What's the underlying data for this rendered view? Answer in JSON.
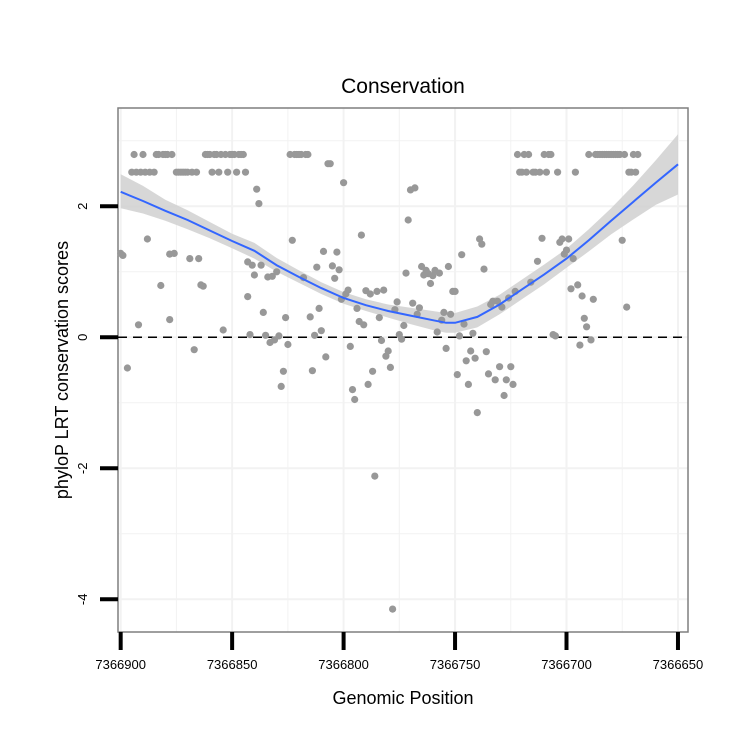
{
  "chart_data": {
    "type": "scatter",
    "title": "Conservation",
    "xlabel": "Genomic Position",
    "ylabel": "phyloP LRT conservation scores",
    "x_reversed": true,
    "xlim": [
      7366901.2,
      7366645.5
    ],
    "ylim": [
      -4.5,
      3.5
    ],
    "x_ticks": [
      7366900,
      7366850,
      7366800,
      7366750,
      7366700,
      7366650
    ],
    "x_tick_labels": [
      "7366900",
      "7366850",
      "7366800",
      "7366750",
      "7366700",
      "7366650"
    ],
    "y_ticks": [
      2,
      0,
      -2,
      -4
    ],
    "y_tick_labels": [
      "2",
      "0",
      "-2",
      "-4"
    ],
    "reference_line": {
      "y": 0,
      "style": "dashed"
    },
    "colors": {
      "points": "#989898",
      "smooth_line": "#3366ff",
      "confidence_band": "#d0d0d0",
      "grid": "#f2f2f2",
      "frame": "#7f7f7f",
      "reference_line": "#000000"
    },
    "series": [
      {
        "name": "phyloP LRT score",
        "points": [
          [
            7366900,
            1.28
          ],
          [
            7366899,
            1.25
          ],
          [
            7366897,
            -0.47
          ],
          [
            7366895,
            2.52
          ],
          [
            7366894,
            2.79
          ],
          [
            7366893,
            2.52
          ],
          [
            7366892,
            0.19
          ],
          [
            7366891,
            2.52
          ],
          [
            7366890,
            2.79
          ],
          [
            7366889,
            2.52
          ],
          [
            7366888,
            1.5
          ],
          [
            7366887,
            2.52
          ],
          [
            7366885,
            2.52
          ],
          [
            7366884,
            2.79
          ],
          [
            7366883,
            2.79
          ],
          [
            7366882,
            0.79
          ],
          [
            7366881,
            2.79
          ],
          [
            7366880,
            2.79
          ],
          [
            7366879,
            2.79
          ],
          [
            7366878,
            0.27
          ],
          [
            7366878,
            1.27
          ],
          [
            7366877,
            2.79
          ],
          [
            7366876,
            1.28
          ],
          [
            7366875,
            2.52
          ],
          [
            7366874,
            2.52
          ],
          [
            7366873,
            2.52
          ],
          [
            7366872,
            2.52
          ],
          [
            7366871,
            2.52
          ],
          [
            7366870,
            2.52
          ],
          [
            7366869,
            1.2
          ],
          [
            7366868,
            2.52
          ],
          [
            7366867,
            -0.19
          ],
          [
            7366866,
            2.52
          ],
          [
            7366865,
            1.2
          ],
          [
            7366864,
            0.8
          ],
          [
            7366863,
            0.78
          ],
          [
            7366862,
            2.79
          ],
          [
            7366861,
            2.79
          ],
          [
            7366860,
            2.79
          ],
          [
            7366859,
            2.52
          ],
          [
            7366858,
            2.79
          ],
          [
            7366857,
            2.79
          ],
          [
            7366856,
            2.52
          ],
          [
            7366855,
            2.79
          ],
          [
            7366854,
            0.11
          ],
          [
            7366853,
            2.79
          ],
          [
            7366852,
            2.52
          ],
          [
            7366851,
            2.79
          ],
          [
            7366850,
            2.79
          ],
          [
            7366849,
            2.79
          ],
          [
            7366848,
            2.52
          ],
          [
            7366847,
            2.79
          ],
          [
            7366846,
            2.79
          ],
          [
            7366845,
            2.79
          ],
          [
            7366844,
            2.52
          ],
          [
            7366843,
            1.15
          ],
          [
            7366843,
            0.62
          ],
          [
            7366842,
            0.04
          ],
          [
            7366841,
            1.1
          ],
          [
            7366840,
            0.95
          ],
          [
            7366839,
            2.26
          ],
          [
            7366838,
            2.04
          ],
          [
            7366837,
            1.1
          ],
          [
            7366836,
            0.38
          ],
          [
            7366835,
            0.03
          ],
          [
            7366834,
            0.92
          ],
          [
            7366833,
            -0.08
          ],
          [
            7366832,
            0.93
          ],
          [
            7366831,
            -0.04
          ],
          [
            7366830,
            1.0
          ],
          [
            7366829,
            0.02
          ],
          [
            7366828,
            -0.75
          ],
          [
            7366827,
            -0.52
          ],
          [
            7366826,
            0.3
          ],
          [
            7366825,
            -0.11
          ],
          [
            7366824,
            2.79
          ],
          [
            7366823,
            1.48
          ],
          [
            7366822,
            2.79
          ],
          [
            7366821,
            2.79
          ],
          [
            7366820,
            2.79
          ],
          [
            7366819,
            2.79
          ],
          [
            7366818,
            0.91
          ],
          [
            7366817,
            2.79
          ],
          [
            7366816,
            2.79
          ],
          [
            7366815,
            0.31
          ],
          [
            7366814,
            -0.51
          ],
          [
            7366813,
            0.03
          ],
          [
            7366812,
            1.07
          ],
          [
            7366811,
            0.44
          ],
          [
            7366810,
            0.1
          ],
          [
            7366809,
            1.31
          ],
          [
            7366808,
            -0.3
          ],
          [
            7366807,
            2.65
          ],
          [
            7366806,
            2.65
          ],
          [
            7366805,
            1.09
          ],
          [
            7366804,
            0.9
          ],
          [
            7366803,
            1.3
          ],
          [
            7366802,
            1.03
          ],
          [
            7366801,
            0.58
          ],
          [
            7366800,
            2.36
          ],
          [
            7366799,
            0.66
          ],
          [
            7366798,
            0.72
          ],
          [
            7366797,
            -0.14
          ],
          [
            7366796,
            -0.8
          ],
          [
            7366795,
            -0.95
          ],
          [
            7366794,
            0.44
          ],
          [
            7366793,
            0.24
          ],
          [
            7366792,
            1.56
          ],
          [
            7366791,
            0.19
          ],
          [
            7366790,
            0.71
          ],
          [
            7366789,
            -0.72
          ],
          [
            7366788,
            0.66
          ],
          [
            7366787,
            -0.52
          ],
          [
            7366786,
            -2.12
          ],
          [
            7366785,
            0.7
          ],
          [
            7366784,
            0.3
          ],
          [
            7366783,
            -0.05
          ],
          [
            7366782,
            0.72
          ],
          [
            7366781,
            -0.29
          ],
          [
            7366780,
            -0.21
          ],
          [
            7366779,
            -0.46
          ],
          [
            7366778,
            -4.15
          ],
          [
            7366777,
            0.42
          ],
          [
            7366776,
            0.54
          ],
          [
            7366775,
            0.04
          ],
          [
            7366774,
            -0.03
          ],
          [
            7366773,
            0.18
          ],
          [
            7366772,
            0.98
          ],
          [
            7366771,
            1.79
          ],
          [
            7366770,
            2.25
          ],
          [
            7366769,
            0.52
          ],
          [
            7366768,
            2.28
          ],
          [
            7366767,
            0.35
          ],
          [
            7366766,
            0.45
          ],
          [
            7366765,
            1.08
          ],
          [
            7366764,
            0.95
          ],
          [
            7366763,
            1.02
          ],
          [
            7366762,
            0.97
          ],
          [
            7366761,
            0.82
          ],
          [
            7366760,
            0.94
          ],
          [
            7366759,
            1.02
          ],
          [
            7366758,
            0.08
          ],
          [
            7366757,
            0.98
          ],
          [
            7366756,
            0.26
          ],
          [
            7366755,
            0.38
          ],
          [
            7366754,
            -0.17
          ],
          [
            7366753,
            1.08
          ],
          [
            7366752,
            0.35
          ],
          [
            7366751,
            0.7
          ],
          [
            7366750,
            0.7
          ],
          [
            7366749,
            -0.57
          ],
          [
            7366748,
            0.02
          ],
          [
            7366747,
            1.26
          ],
          [
            7366746,
            0.2
          ],
          [
            7366745,
            -0.36
          ],
          [
            7366744,
            -0.72
          ],
          [
            7366743,
            -0.21
          ],
          [
            7366742,
            0.06
          ],
          [
            7366741,
            -0.32
          ],
          [
            7366740,
            -1.15
          ],
          [
            7366739,
            1.5
          ],
          [
            7366738,
            1.42
          ],
          [
            7366737,
            1.04
          ],
          [
            7366736,
            -0.22
          ],
          [
            7366735,
            -0.56
          ],
          [
            7366734,
            0.5
          ],
          [
            7366733,
            0.55
          ],
          [
            7366732,
            -0.65
          ],
          [
            7366731,
            0.55
          ],
          [
            7366730,
            -0.45
          ],
          [
            7366729,
            0.46
          ],
          [
            7366728,
            -0.89
          ],
          [
            7366727,
            -0.65
          ],
          [
            7366726,
            0.6
          ],
          [
            7366725,
            -0.45
          ],
          [
            7366724,
            -0.72
          ],
          [
            7366723,
            0.7
          ],
          [
            7366722,
            2.79
          ],
          [
            7366721,
            2.52
          ],
          [
            7366720,
            2.52
          ],
          [
            7366719,
            2.79
          ],
          [
            7366718,
            2.52
          ],
          [
            7366717,
            2.79
          ],
          [
            7366716,
            0.84
          ],
          [
            7366715,
            2.52
          ],
          [
            7366714,
            2.52
          ],
          [
            7366713,
            1.16
          ],
          [
            7366712,
            2.52
          ],
          [
            7366711,
            1.51
          ],
          [
            7366710,
            2.79
          ],
          [
            7366709,
            2.52
          ],
          [
            7366708,
            2.79
          ],
          [
            7366707,
            2.79
          ],
          [
            7366706,
            0.04
          ],
          [
            7366705,
            0.02
          ],
          [
            7366704,
            2.52
          ],
          [
            7366703,
            1.45
          ],
          [
            7366702,
            1.5
          ],
          [
            7366701,
            1.27
          ],
          [
            7366700,
            1.33
          ],
          [
            7366699,
            1.5
          ],
          [
            7366698,
            0.74
          ],
          [
            7366697,
            1.2
          ],
          [
            7366696,
            2.52
          ],
          [
            7366695,
            0.8
          ],
          [
            7366694,
            -0.12
          ],
          [
            7366693,
            0.63
          ],
          [
            7366692,
            0.29
          ],
          [
            7366691,
            0.16
          ],
          [
            7366690,
            2.79
          ],
          [
            7366689,
            -0.04
          ],
          [
            7366688,
            0.58
          ],
          [
            7366687,
            2.79
          ],
          [
            7366686,
            2.79
          ],
          [
            7366685,
            2.79
          ],
          [
            7366684,
            2.79
          ],
          [
            7366683,
            2.79
          ],
          [
            7366682,
            2.79
          ],
          [
            7366681,
            2.79
          ],
          [
            7366680,
            2.79
          ],
          [
            7366679,
            2.79
          ],
          [
            7366678,
            2.79
          ],
          [
            7366677,
            2.79
          ],
          [
            7366676,
            2.79
          ],
          [
            7366675,
            1.48
          ],
          [
            7366674,
            2.79
          ],
          [
            7366673,
            0.46
          ],
          [
            7366672,
            2.52
          ],
          [
            7366671,
            2.52
          ],
          [
            7366670,
            2.79
          ],
          [
            7366669,
            2.52
          ],
          [
            7366668,
            2.79
          ]
        ]
      }
    ],
    "smooth": {
      "method": "loess",
      "x": [
        7366900,
        7366890,
        7366880,
        7366870,
        7366860,
        7366850,
        7366840,
        7366830,
        7366820,
        7366810,
        7366800,
        7366790,
        7366780,
        7366770,
        7366760,
        7366754,
        7366750,
        7366740,
        7366730,
        7366720,
        7366710,
        7366700,
        7366690,
        7366680,
        7366670,
        7366660,
        7366650
      ],
      "y": [
        2.22,
        2.08,
        1.93,
        1.79,
        1.63,
        1.47,
        1.32,
        1.1,
        0.92,
        0.75,
        0.6,
        0.49,
        0.4,
        0.33,
        0.26,
        0.22,
        0.22,
        0.31,
        0.5,
        0.73,
        0.96,
        1.2,
        1.48,
        1.78,
        2.07,
        2.36,
        2.64
      ],
      "lower": [
        1.97,
        1.89,
        1.78,
        1.65,
        1.51,
        1.36,
        1.2,
        1.0,
        0.83,
        0.66,
        0.51,
        0.4,
        0.3,
        0.2,
        0.11,
        0.07,
        0.07,
        0.15,
        0.35,
        0.58,
        0.81,
        1.06,
        1.31,
        1.57,
        1.8,
        2.02,
        2.18
      ],
      "upper": [
        2.49,
        2.31,
        2.1,
        1.94,
        1.76,
        1.58,
        1.44,
        1.21,
        1.02,
        0.84,
        0.69,
        0.58,
        0.5,
        0.45,
        0.4,
        0.37,
        0.37,
        0.47,
        0.65,
        0.88,
        1.11,
        1.35,
        1.65,
        1.97,
        2.32,
        2.7,
        3.1
      ]
    }
  }
}
